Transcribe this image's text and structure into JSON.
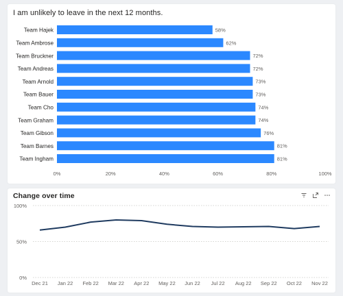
{
  "bar_card": {
    "title": "I am unlikely to leave in the next 12 months."
  },
  "line_card": {
    "title": "Change over time",
    "icons": [
      "filter-icon",
      "focus-mode-icon",
      "more-options-icon"
    ]
  },
  "colors": {
    "bar": "#2b88ff",
    "line": "#1e3a5f",
    "grid": "#c8c6c4",
    "text": "#605e5c"
  },
  "chart_data": [
    {
      "type": "bar",
      "orientation": "horizontal",
      "title": "I am unlikely to leave in the next 12 months.",
      "categories": [
        "Team Hajek",
        "Team Ambrose",
        "Team Bruckner",
        "Team Andreas",
        "Team Arnold",
        "Team Bauer",
        "Team Cho",
        "Team Graham",
        "Team Gibson",
        "Team Barnes",
        "Team Ingham"
      ],
      "values": [
        58,
        62,
        72,
        72,
        73,
        73,
        74,
        74,
        76,
        81,
        81
      ],
      "value_labels": [
        "58%",
        "62%",
        "72%",
        "72%",
        "73%",
        "73%",
        "74%",
        "74%",
        "76%",
        "81%",
        "81%"
      ],
      "xlim": [
        0,
        100
      ],
      "xticks": [
        0,
        20,
        40,
        60,
        80,
        100
      ],
      "xtick_labels": [
        "0%",
        "20%",
        "40%",
        "60%",
        "80%",
        "100%"
      ],
      "grid": false
    },
    {
      "type": "line",
      "title": "Change over time",
      "x": [
        "Dec 21",
        "Jan 22",
        "Feb 22",
        "Mar 22",
        "Apr 22",
        "May 22",
        "Jun 22",
        "Jul 22",
        "Aug 22",
        "Sep 22",
        "Oct 22",
        "Nov 22"
      ],
      "values": [
        66,
        70,
        77,
        80,
        79,
        74,
        71,
        70,
        70.5,
        71,
        68,
        71
      ],
      "ylim": [
        0,
        100
      ],
      "yticks": [
        0,
        50,
        100
      ],
      "ytick_labels": [
        "0%",
        "50%",
        "100%"
      ],
      "grid": true
    }
  ]
}
